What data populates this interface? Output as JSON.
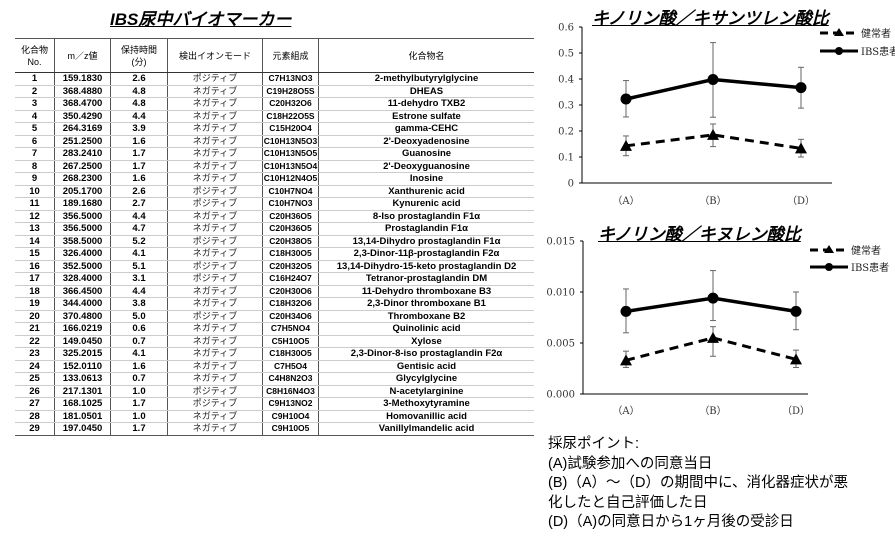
{
  "table": {
    "title": "IBS尿中バイオマーカー",
    "headers": [
      "化合物\nNo.",
      "m／z値",
      "保持時間\n(分)",
      "検出イオンモード",
      "元素組成",
      "化合物名"
    ],
    "rows": [
      [
        "1",
        "159.1830",
        "2.6",
        "ポジティブ",
        "C7H13NO3",
        "2-methylbutyrylglycine"
      ],
      [
        "2",
        "368.4880",
        "4.8",
        "ネガティブ",
        "C19H28O5S",
        "DHEAS"
      ],
      [
        "3",
        "368.4700",
        "4.8",
        "ネガティブ",
        "C20H32O6",
        "11-dehydro TXB2"
      ],
      [
        "4",
        "350.4290",
        "4.4",
        "ネガティブ",
        "C18H22O5S",
        "Estrone sulfate"
      ],
      [
        "5",
        "264.3169",
        "3.9",
        "ネガティブ",
        "C15H20O4",
        "gamma-CEHC"
      ],
      [
        "6",
        "251.2500",
        "1.6",
        "ネガティブ",
        "C10H13N5O3",
        "2'-Deoxyadenosine"
      ],
      [
        "7",
        "283.2410",
        "1.7",
        "ネガティブ",
        "C10H13N5O5",
        "Guanosine"
      ],
      [
        "8",
        "267.2500",
        "1.7",
        "ネガティブ",
        "C10H13N5O4",
        "2'-Deoxyguanosine"
      ],
      [
        "9",
        "268.2300",
        "1.6",
        "ネガティブ",
        "C10H12N4O5",
        "Inosine"
      ],
      [
        "10",
        "205.1700",
        "2.6",
        "ポジティブ",
        "C10H7NO4",
        "Xanthurenic acid"
      ],
      [
        "11",
        "189.1680",
        "2.7",
        "ポジティブ",
        "C10H7NO3",
        "Kynurenic acid"
      ],
      [
        "12",
        "356.5000",
        "4.4",
        "ネガティブ",
        "C20H36O5",
        "8-Iso prostaglandin F1α"
      ],
      [
        "13",
        "356.5000",
        "4.7",
        "ネガティブ",
        "C20H36O5",
        "Prostaglandin F1α"
      ],
      [
        "14",
        "358.5000",
        "5.2",
        "ポジティブ",
        "C20H38O5",
        "13,14-Dihydro prostaglandin F1α"
      ],
      [
        "15",
        "326.4000",
        "4.1",
        "ネガティブ",
        "C18H30O5",
        "2,3-Dinor-11β-prostaglandin F2α"
      ],
      [
        "16",
        "352.5000",
        "5.1",
        "ポジティブ",
        "C20H32O5",
        "13,14-Dihydro-15-keto prostaglandin D2"
      ],
      [
        "17",
        "328.4000",
        "3.1",
        "ポジティブ",
        "C16H24O7",
        "Tetranor-prostaglandin DM"
      ],
      [
        "18",
        "366.4500",
        "4.4",
        "ネガティブ",
        "C20H30O6",
        "11-Dehydro thromboxane B3"
      ],
      [
        "19",
        "344.4000",
        "3.8",
        "ネガティブ",
        "C18H32O6",
        "2,3-Dinor thromboxane B1"
      ],
      [
        "20",
        "370.4800",
        "5.0",
        "ポジティブ",
        "C20H34O6",
        "Thromboxane B2"
      ],
      [
        "21",
        "166.0219",
        "0.6",
        "ネガティブ",
        "C7H5NO4",
        "Quinolinic acid"
      ],
      [
        "22",
        "149.0450",
        "0.7",
        "ネガティブ",
        "C5H10O5",
        "Xylose"
      ],
      [
        "23",
        "325.2015",
        "4.1",
        "ネガティブ",
        "C18H30O5",
        "2,3-Dinor-8-iso prostaglandin F2α"
      ],
      [
        "24",
        "152.0110",
        "1.6",
        "ネガティブ",
        "C7H5O4",
        "Gentisic acid"
      ],
      [
        "25",
        "133.0613",
        "0.7",
        "ネガティブ",
        "C4H8N2O3",
        "Glycylglycine"
      ],
      [
        "26",
        "217.1301",
        "1.0",
        "ポジティブ",
        "C8H16N4O3",
        "N-acetylarginine"
      ],
      [
        "27",
        "168.1025",
        "1.7",
        "ポジティブ",
        "C9H13NO2",
        "3-Methoxytyramine"
      ],
      [
        "28",
        "181.0501",
        "1.0",
        "ネガティブ",
        "C9H10O4",
        "Homovanillic acid"
      ],
      [
        "29",
        "197.0450",
        "1.7",
        "ネガティブ",
        "C9H10O5",
        "Vanillylmandelic acid"
      ]
    ],
    "subscript_formula_rows": 21
  },
  "chart_data": [
    {
      "type": "line",
      "title": "キノリン酸／キサンツレン酸比",
      "categories": [
        "（A）",
        "（B）",
        "（D）"
      ],
      "ylim": [
        0,
        0.6
      ],
      "yticks": [
        "0",
        "0.1",
        "0.2",
        "0.3",
        "0.4",
        "0.5",
        "0.6"
      ],
      "ytick_values": [
        0,
        0.1,
        0.2,
        0.3,
        0.4,
        0.5,
        0.6
      ],
      "legend": "top-right",
      "series": [
        {
          "name": "健常者",
          "style": "dashed",
          "marker": "triangle",
          "values": [
            0.143,
            0.185,
            0.133
          ],
          "err_low": [
            0.105,
            0.14,
            0.1
          ],
          "err_high": [
            0.181,
            0.227,
            0.168
          ]
        },
        {
          "name": "IBS患者",
          "style": "solid",
          "marker": "circle",
          "values": [
            0.323,
            0.398,
            0.367
          ],
          "err_low": [
            0.254,
            0.253,
            0.288
          ],
          "err_high": [
            0.394,
            0.54,
            0.445
          ]
        }
      ]
    },
    {
      "type": "line",
      "title": "キノリン酸／キヌレン酸比",
      "categories": [
        "（A）",
        "（B）",
        "（D）"
      ],
      "ylim": [
        0,
        0.015
      ],
      "yticks": [
        "0.000",
        "0.005",
        "0.010",
        "0.015"
      ],
      "ytick_values": [
        0,
        0.005,
        0.01,
        0.015
      ],
      "legend": "top-right",
      "series": [
        {
          "name": "健常者",
          "style": "dashed",
          "marker": "triangle",
          "values": [
            0.0033,
            0.0055,
            0.0034
          ],
          "err_low": [
            0.0026,
            0.0037,
            0.0026
          ],
          "err_high": [
            0.0042,
            0.0066,
            0.0043
          ]
        },
        {
          "name": "IBS患者",
          "style": "solid",
          "marker": "circle",
          "values": [
            0.0081,
            0.0094,
            0.0081
          ],
          "err_low": [
            0.006,
            0.0072,
            0.0063
          ],
          "err_high": [
            0.0103,
            0.0121,
            0.01
          ]
        }
      ]
    }
  ],
  "notes": {
    "heading": "採尿ポイント:",
    "lines": [
      "(A)試験参加への同意当日",
      "(B)（A）～（D）の期間中に、消化器症状が悪",
      "化したと自己評価した日",
      "(D)（A)の同意日から1ヶ月後の受診日"
    ]
  }
}
